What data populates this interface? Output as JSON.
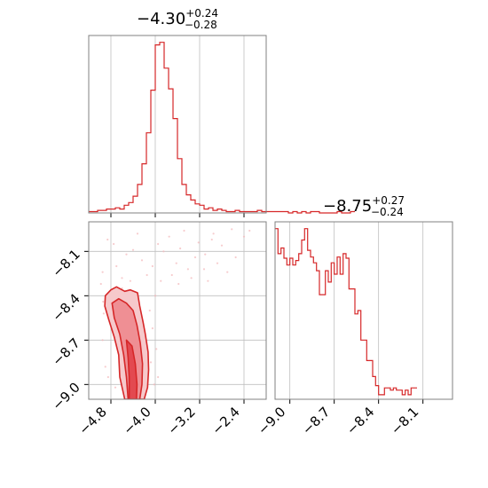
{
  "chart_data": [
    {
      "type": "histogram",
      "panel": "marginal-param-1",
      "title": {
        "value": "−4.30",
        "sup": "+0.24",
        "sub": "−0.28"
      },
      "xlim": [
        -5.2,
        -2.0
      ],
      "xticks": [
        -4.8,
        -4.0,
        -3.2,
        -2.4
      ],
      "grid": true,
      "color": "#d62728",
      "bins_start": -5.2,
      "bin_width": 0.08,
      "counts": [
        1,
        1,
        2,
        2,
        3,
        3,
        4,
        3,
        6,
        8,
        13,
        22,
        38,
        62,
        95,
        130,
        132,
        112,
        96,
        73,
        42,
        22,
        14,
        10,
        7,
        6,
        3,
        4,
        2,
        3,
        2,
        1,
        1,
        2,
        1,
        1,
        1,
        1,
        2,
        1,
        1,
        1,
        1,
        1,
        1,
        0,
        1,
        0,
        1,
        0,
        1,
        1,
        0,
        0,
        0,
        0,
        1,
        0,
        0,
        1
      ]
    },
    {
      "type": "histogram",
      "panel": "marginal-param-2",
      "title": {
        "value": "−8.75",
        "sup": "+0.27",
        "sub": "−0.24"
      },
      "xlim": [
        -9.1,
        -7.9
      ],
      "xticks": [
        -9.0,
        -8.7,
        -8.4,
        -8.1
      ],
      "grid": true,
      "color": "#d62728",
      "bins_start": -9.1,
      "bin_width": 0.02,
      "counts": [
        150,
        128,
        133,
        124,
        118,
        124,
        118,
        122,
        128,
        140,
        150,
        131,
        125,
        120,
        113,
        92,
        92,
        113,
        103,
        120,
        110,
        125,
        110,
        128,
        124,
        97,
        97,
        75,
        78,
        52,
        52,
        34,
        34,
        20,
        12,
        4,
        4,
        10,
        10,
        8,
        10,
        8,
        8,
        4,
        8,
        4,
        10,
        10
      ]
    },
    {
      "type": "contour",
      "panel": "joint",
      "xlim": [
        -5.2,
        -2.0
      ],
      "ylim": [
        -9.1,
        -7.9
      ],
      "xticks": [
        -4.8,
        -4.0,
        -3.2,
        -2.4
      ],
      "yticks": [
        -8.1,
        -8.4,
        -8.7,
        -9.0
      ],
      "grid": true,
      "color": "#d62728",
      "levels": [
        {
          "fill": "#f6c9cb",
          "points": [
            [
              -4.9,
              -8.4
            ],
            [
              -4.8,
              -8.36
            ],
            [
              -4.7,
              -8.34
            ],
            [
              -4.55,
              -8.37
            ],
            [
              -4.45,
              -8.36
            ],
            [
              -4.32,
              -8.38
            ],
            [
              -4.28,
              -8.47
            ],
            [
              -4.22,
              -8.58
            ],
            [
              -4.18,
              -8.66
            ],
            [
              -4.13,
              -8.78
            ],
            [
              -4.12,
              -8.9
            ],
            [
              -4.14,
              -9.02
            ],
            [
              -4.2,
              -9.1
            ],
            [
              -4.55,
              -9.1
            ],
            [
              -4.64,
              -8.95
            ],
            [
              -4.66,
              -8.8
            ],
            [
              -4.74,
              -8.68
            ],
            [
              -4.84,
              -8.56
            ],
            [
              -4.91,
              -8.47
            ]
          ]
        },
        {
          "fill": "#ef8f94",
          "points": [
            [
              -4.78,
              -8.45
            ],
            [
              -4.66,
              -8.42
            ],
            [
              -4.52,
              -8.45
            ],
            [
              -4.4,
              -8.5
            ],
            [
              -4.33,
              -8.6
            ],
            [
              -4.27,
              -8.72
            ],
            [
              -4.23,
              -8.86
            ],
            [
              -4.24,
              -9.0
            ],
            [
              -4.28,
              -9.1
            ],
            [
              -4.49,
              -9.1
            ],
            [
              -4.52,
              -8.95
            ],
            [
              -4.57,
              -8.8
            ],
            [
              -4.64,
              -8.66
            ],
            [
              -4.74,
              -8.55
            ]
          ]
        },
        {
          "fill": "#e34950",
          "points": [
            [
              -4.52,
              -8.7
            ],
            [
              -4.42,
              -8.74
            ],
            [
              -4.36,
              -8.86
            ],
            [
              -4.33,
              -9.0
            ],
            [
              -4.34,
              -9.1
            ],
            [
              -4.47,
              -9.1
            ],
            [
              -4.47,
              -8.95
            ],
            [
              -4.49,
              -8.82
            ]
          ]
        }
      ],
      "samples": [
        [
          -4.75,
          -8.05
        ],
        [
          -4.52,
          -8.12
        ],
        [
          -4.4,
          -8.09
        ],
        [
          -4.24,
          -8.16
        ],
        [
          -3.85,
          -8.1
        ],
        [
          -3.62,
          -8.18
        ],
        [
          -3.55,
          -8.08
        ],
        [
          -3.41,
          -8.22
        ],
        [
          -3.22,
          -8.04
        ],
        [
          -3.1,
          -8.12
        ],
        [
          -2.95,
          -7.98
        ],
        [
          -2.8,
          -8.06
        ],
        [
          -2.62,
          -7.95
        ],
        [
          -2.55,
          -8.14
        ],
        [
          -4.95,
          -8.24
        ],
        [
          -4.6,
          -8.28
        ],
        [
          -3.9,
          -8.3
        ],
        [
          -3.7,
          -8.26
        ],
        [
          -3.35,
          -8.28
        ],
        [
          -3.05,
          -8.3
        ],
        [
          -4.86,
          -8.02
        ],
        [
          -4.32,
          -7.98
        ],
        [
          -4.05,
          -8.2
        ],
        [
          -3.75,
          -8.0
        ],
        [
          -3.48,
          -7.96
        ],
        [
          -3.12,
          -8.22
        ],
        [
          -2.88,
          -8.18
        ],
        [
          -2.7,
          -8.24
        ],
        [
          -4.98,
          -8.32
        ],
        [
          -4.7,
          -8.2
        ],
        [
          -4.15,
          -8.26
        ],
        [
          -3.95,
          -8.05
        ],
        [
          -3.28,
          -8.14
        ],
        [
          -2.98,
          -8.02
        ],
        [
          -4.45,
          -8.3
        ],
        [
          -3.58,
          -8.32
        ],
        [
          -2.4,
          -8.0
        ],
        [
          -2.3,
          -7.96
        ],
        [
          -4.93,
          -8.52
        ],
        [
          -4.95,
          -8.7
        ],
        [
          -4.9,
          -8.88
        ],
        [
          -4.72,
          -9.02
        ],
        [
          -4.1,
          -8.5
        ],
        [
          -4.05,
          -8.62
        ],
        [
          -4.08,
          -8.85
        ],
        [
          -4.02,
          -9.0
        ],
        [
          -3.98,
          -8.76
        ],
        [
          -4.0,
          -8.4
        ],
        [
          -4.6,
          -8.35
        ],
        [
          -4.94,
          -8.44
        ],
        [
          -4.85,
          -8.95
        ],
        [
          -3.95,
          -8.95
        ]
      ]
    }
  ]
}
